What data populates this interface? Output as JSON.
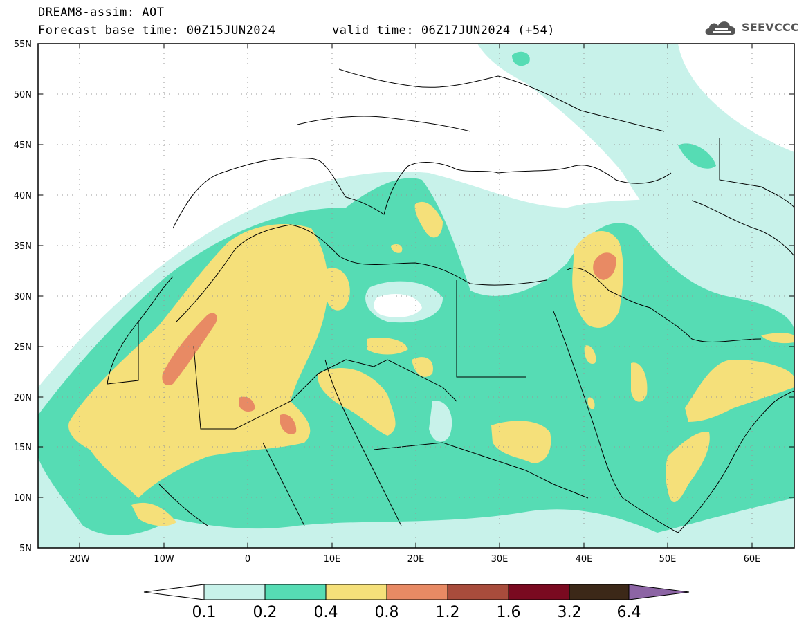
{
  "title": {
    "line1": "DREAM8-assim: AOT",
    "base_time": "Forecast base time: 00Z15JUN2024",
    "valid_time": "valid time: 06Z17JUN2024 (+54)"
  },
  "logo": {
    "text": "SEEVCCC",
    "icon": "cloud-logo-icon"
  },
  "map": {
    "lon_range": [
      -25,
      65
    ],
    "lat_range": [
      5,
      55
    ],
    "lat_ticks": [
      "5N",
      "10N",
      "15N",
      "20N",
      "25N",
      "30N",
      "35N",
      "40N",
      "45N",
      "50N",
      "55N"
    ],
    "lon_ticks": [
      "20W",
      "10W",
      "0",
      "10E",
      "20E",
      "30E",
      "40E",
      "50E",
      "60E"
    ],
    "grid": "dotted"
  },
  "legend": {
    "labels": [
      "0.1",
      "0.2",
      "0.4",
      "0.8",
      "1.2",
      "1.6",
      "3.2",
      "6.4"
    ],
    "colors": [
      "#ffffff",
      "#c8f2ea",
      "#56dcb4",
      "#f5e07a",
      "#e88a64",
      "#a84c3c",
      "#7a0a20",
      "#3c2818",
      "#8c64a4"
    ]
  }
}
